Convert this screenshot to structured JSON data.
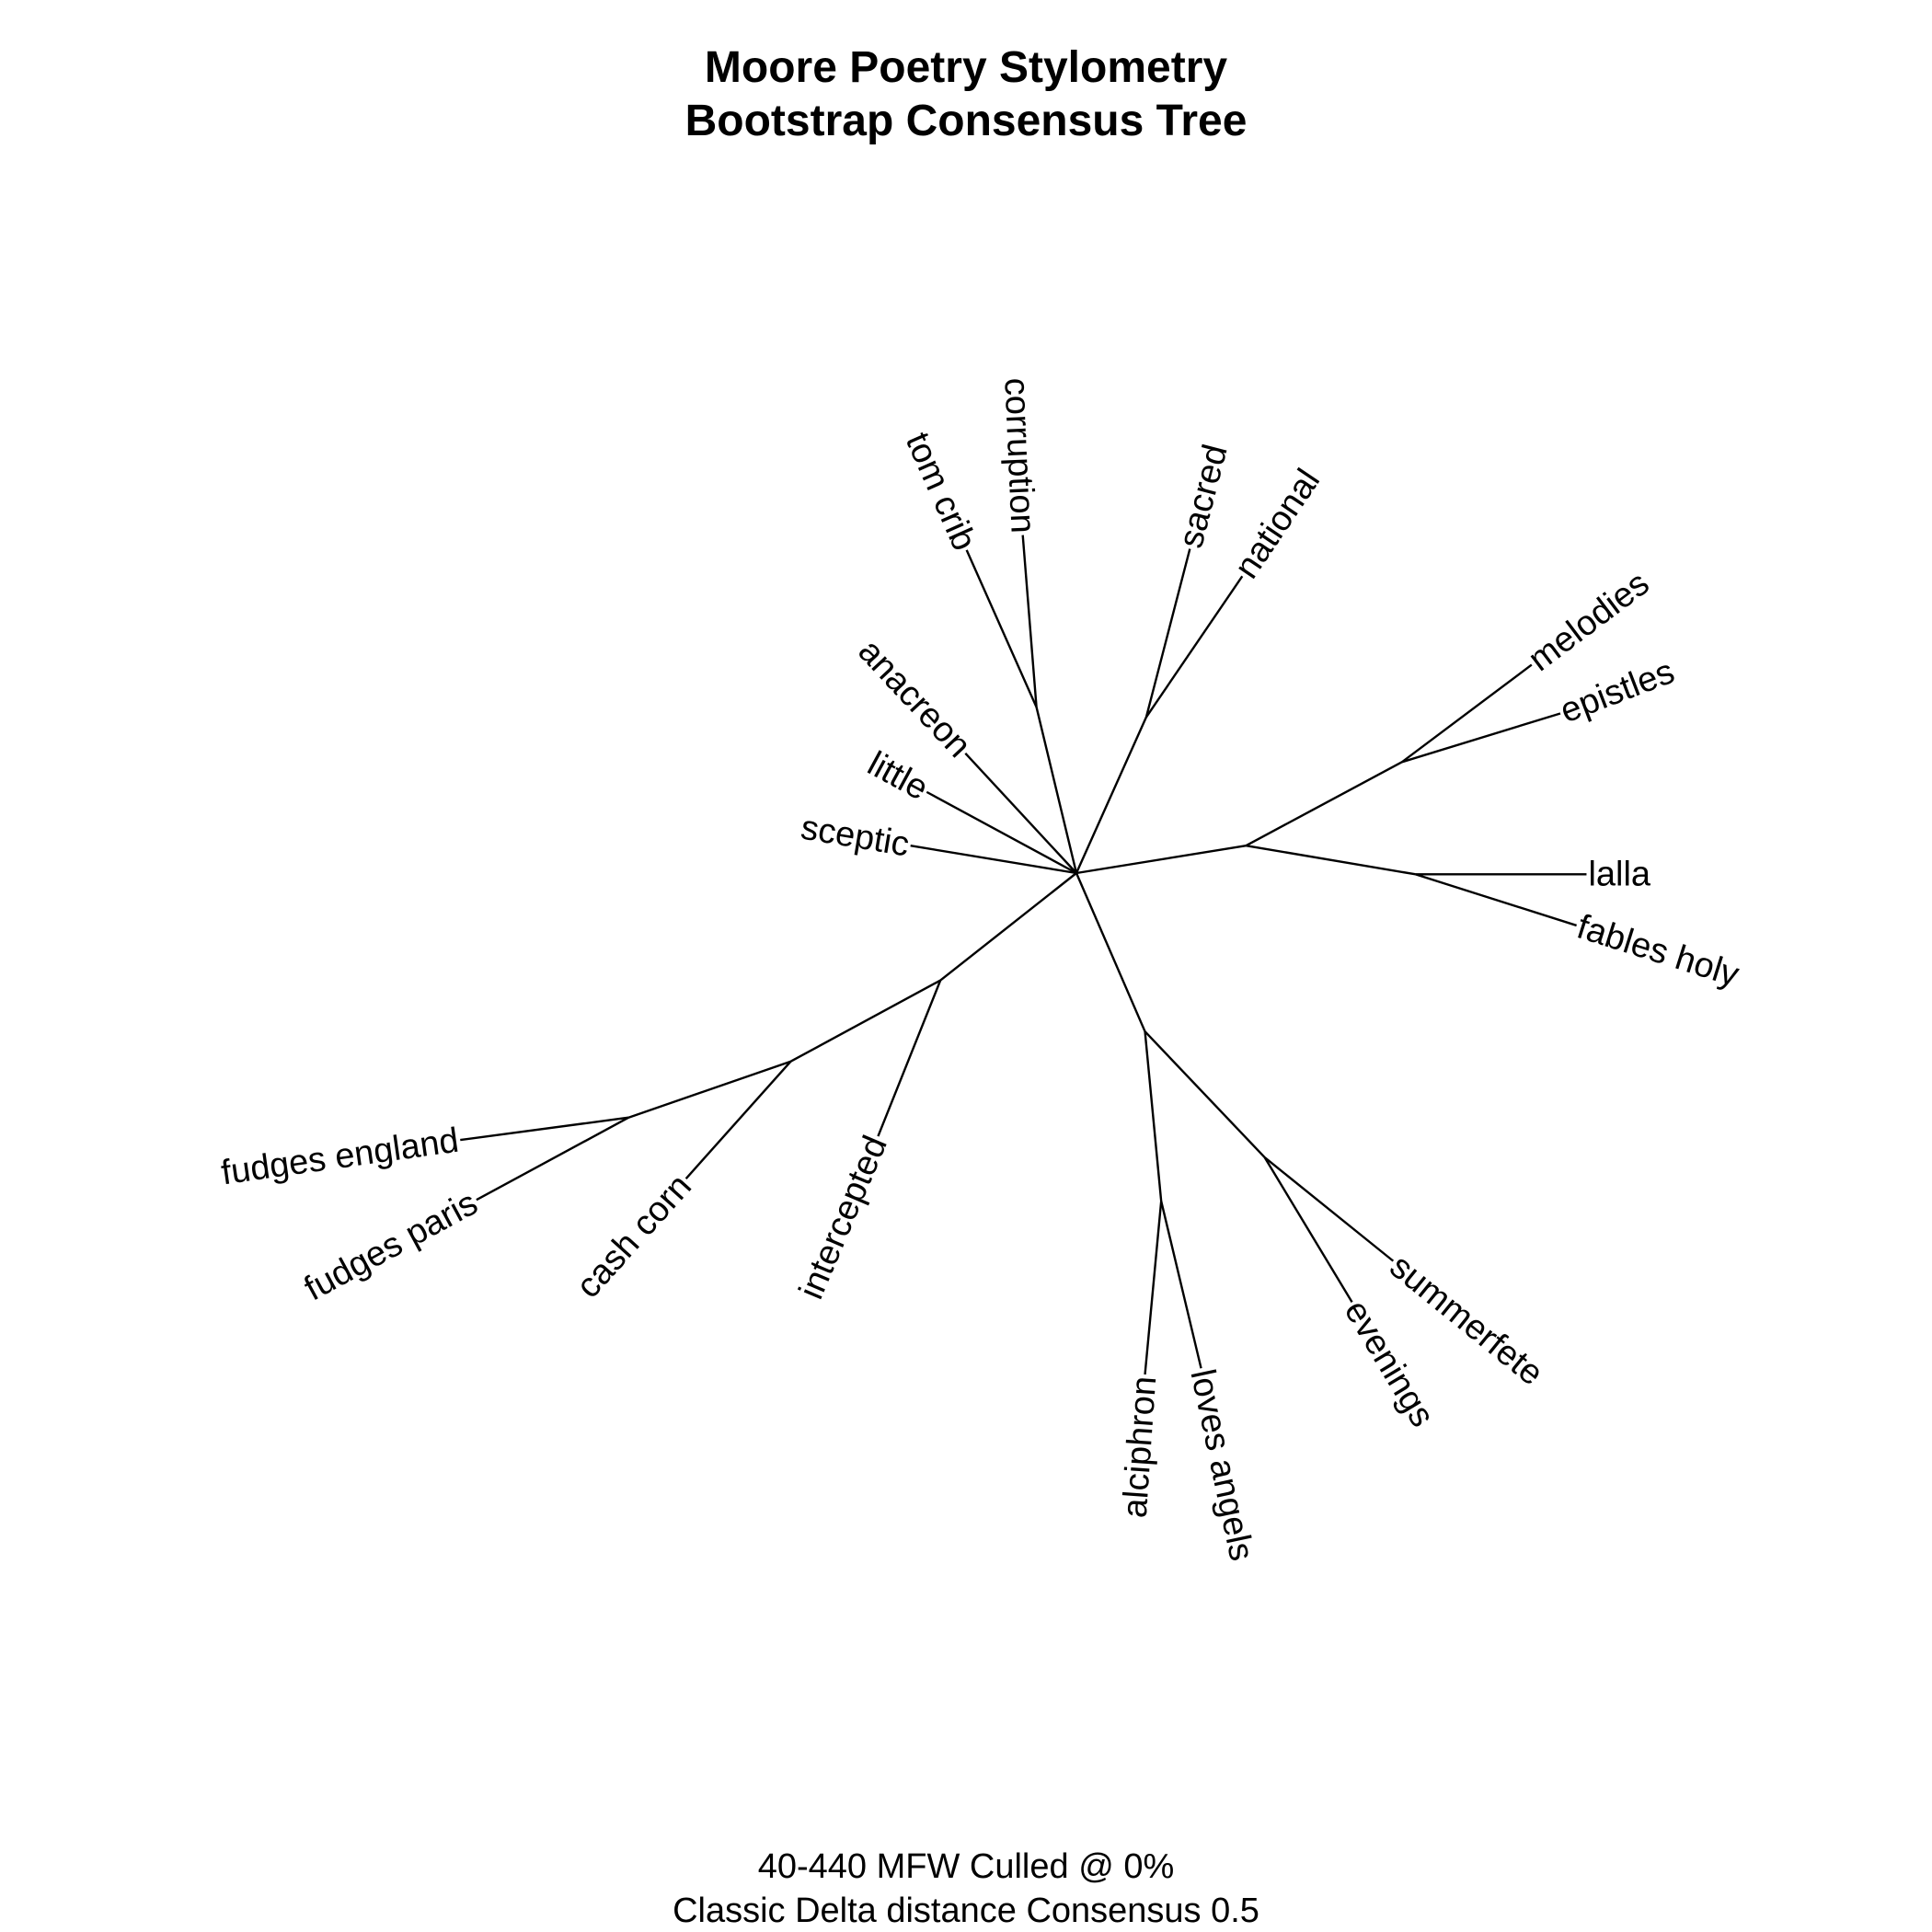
{
  "title": {
    "line1": "Moore Poetry Stylometry",
    "line2": "Bootstrap Consensus Tree"
  },
  "subtitle": {
    "line1": "40-440 MFW  Culled @ 0%",
    "line2": "Classic Delta distance Consensus 0.5"
  },
  "tree": {
    "type": "unrooted-consensus-tree",
    "leaves": [
      "corruption",
      "tom crib",
      "sacred",
      "national",
      "melodies",
      "epistles",
      "lalla",
      "fables holy",
      "anacreon",
      "little",
      "sceptic",
      "fudges england",
      "fudges paris",
      "cash corn",
      "intercepted",
      "alciphron",
      "loves angels",
      "evenings",
      "summerfete"
    ],
    "clusters": [
      [
        "corruption",
        "tom crib"
      ],
      [
        "sacred",
        "national"
      ],
      [
        "melodies",
        "epistles",
        "lalla",
        "fables holy"
      ],
      [
        "melodies",
        "epistles"
      ],
      [
        "lalla",
        "fables holy"
      ],
      [
        "fudges england",
        "fudges paris",
        "cash corn",
        "intercepted"
      ],
      [
        "fudges england",
        "fudges paris",
        "cash corn"
      ],
      [
        "fudges england",
        "fudges paris"
      ],
      [
        "alciphron",
        "loves angels",
        "evenings",
        "summerfete"
      ],
      [
        "alciphron",
        "loves angels"
      ],
      [
        "evenings",
        "summerfete"
      ]
    ],
    "unresolved_at_center": [
      "anacreon",
      "little",
      "sceptic"
    ]
  }
}
